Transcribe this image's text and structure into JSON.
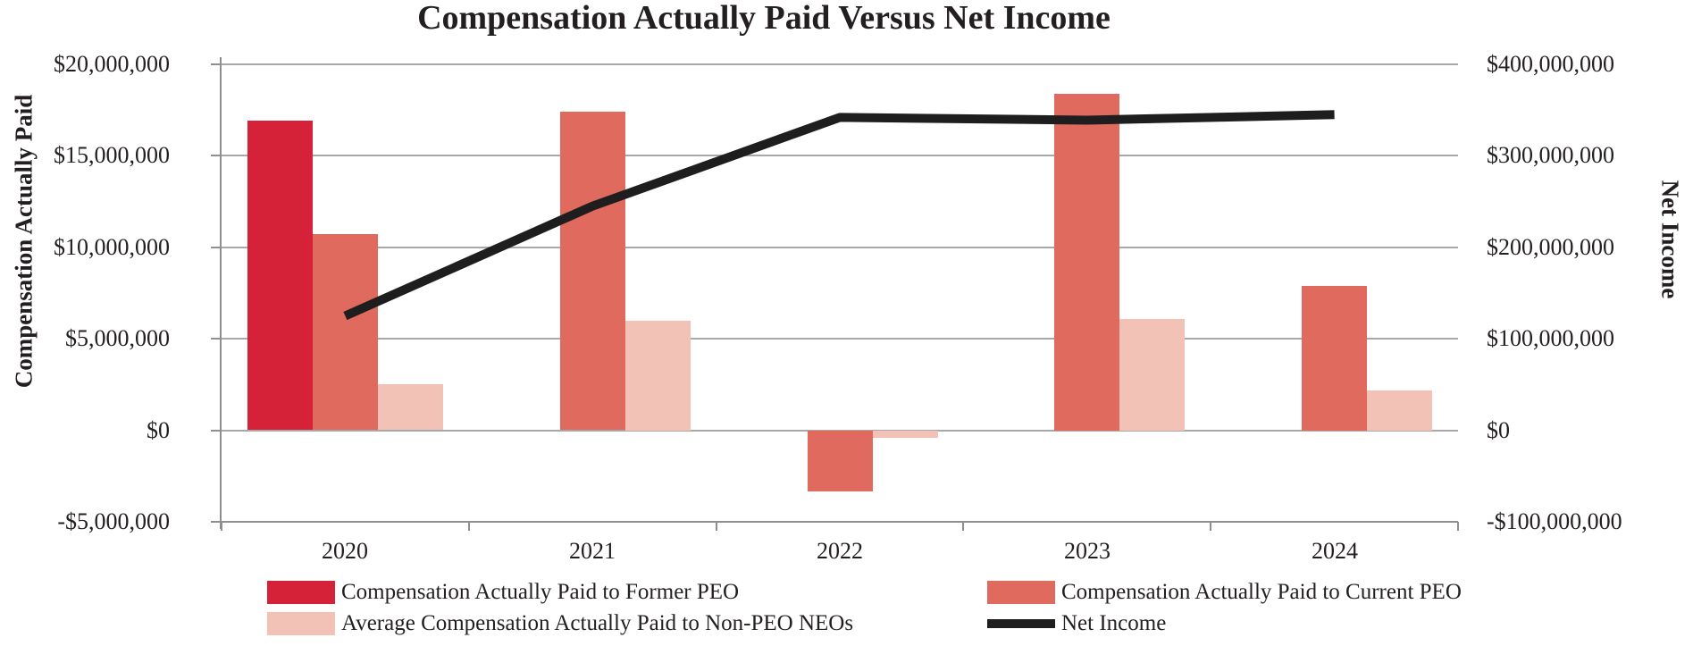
{
  "title": "Compensation Actually Paid Versus Net Income",
  "left_axis": {
    "title": "Compensation Actually Paid",
    "tick_labels": [
      "$20,000,000",
      "$15,000,000",
      "$10,000,000",
      "$5,000,000",
      "$0",
      "-$5,000,000"
    ]
  },
  "right_axis": {
    "title": "Net Income",
    "tick_labels": [
      "$400,000,000",
      "$300,000,000",
      "$200,000,000",
      "$100,000,000",
      "$0",
      "-$100,000,000"
    ]
  },
  "colors": {
    "former_peo": "#d52239",
    "current_peo": "#e06a5e",
    "non_peo_neos": "#f2c2b6",
    "net_income_line": "#1e1e1e",
    "gridline": "#a8a8a8"
  },
  "chart_data": {
    "type": "bar+line",
    "categories": [
      "2020",
      "2021",
      "2022",
      "2023",
      "2024"
    ],
    "series": [
      {
        "name": "Compensation Actually Paid to Former PEO",
        "type": "bar",
        "axis": "left",
        "color": "#d52239",
        "values": [
          16900000,
          null,
          null,
          null,
          null
        ]
      },
      {
        "name": "Compensation Actually Paid to Current PEO",
        "type": "bar",
        "axis": "left",
        "color": "#e06a5e",
        "values": [
          10700000,
          17400000,
          -3300000,
          18400000,
          7900000
        ]
      },
      {
        "name": "Average Compensation Actually Paid to Non-PEO NEOs",
        "type": "bar",
        "axis": "left",
        "color": "#f2c2b6",
        "values": [
          2500000,
          6000000,
          -400000,
          6100000,
          2200000
        ]
      },
      {
        "name": "Net Income",
        "type": "line",
        "axis": "right",
        "color": "#1e1e1e",
        "values": [
          125000000,
          245000000,
          342000000,
          339000000,
          345000000
        ]
      }
    ],
    "title": "Compensation Actually Paid Versus Net Income",
    "xlabel": "",
    "ylabel_left": "Compensation Actually Paid",
    "ylabel_right": "Net Income",
    "left_ylim": [
      -5000000,
      20000000
    ],
    "left_step": 5000000,
    "right_ylim": [
      -100000000,
      400000000
    ],
    "right_step": 100000000,
    "grid": true,
    "legend_position": "bottom"
  }
}
